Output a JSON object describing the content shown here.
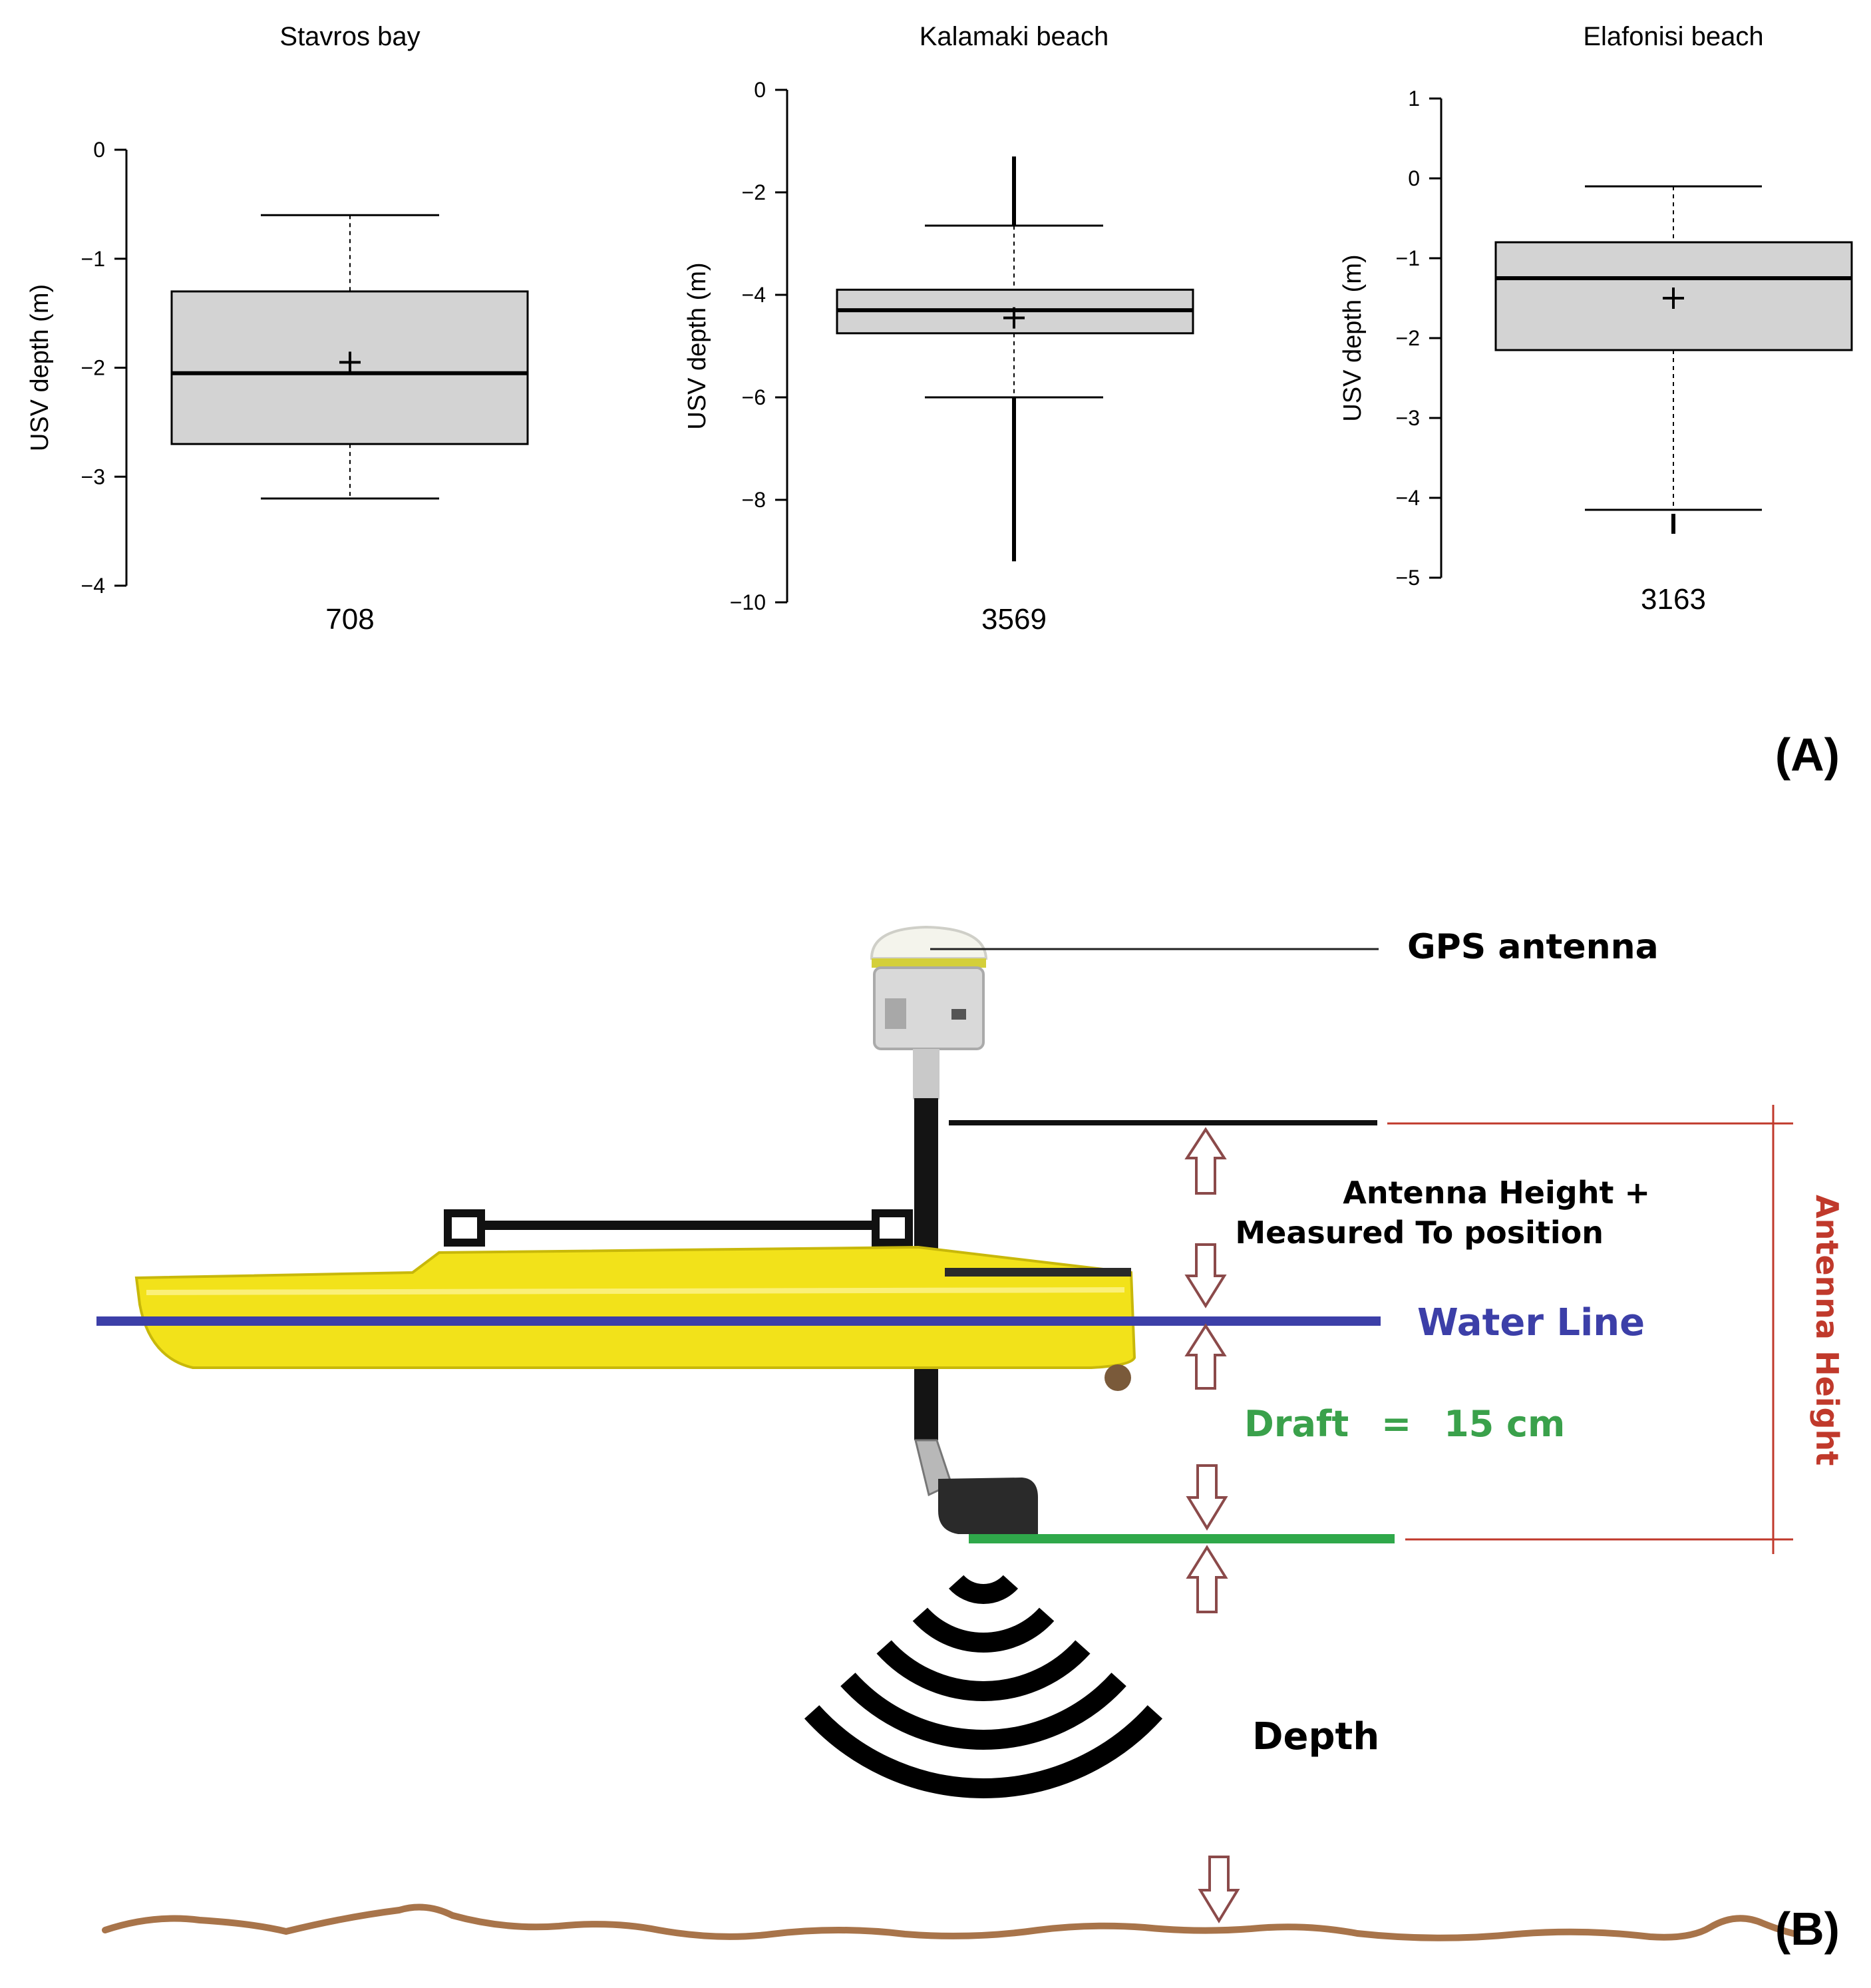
{
  "panel_a_label": "(A)",
  "panel_b_label": "(B)",
  "chart_data": [
    {
      "type": "box",
      "title": "Stavros bay",
      "ylabel": "USV depth (m)",
      "ylim": [
        -4,
        0
      ],
      "yticks": [
        0,
        -1,
        -2,
        -3,
        -4
      ],
      "ytick_labels": [
        "0",
        "−1",
        "−2",
        "−3",
        "−4"
      ],
      "count_label": "708",
      "box": {
        "whisker_high": -0.6,
        "q3": -1.3,
        "median": -2.05,
        "mean": -1.95,
        "q1": -2.7,
        "whisker_low": -3.2
      },
      "outlier_ranges": []
    },
    {
      "type": "box",
      "title": "Kalamaki beach",
      "ylabel": "USV depth (m)",
      "ylim": [
        -10,
        0
      ],
      "yticks": [
        0,
        -2,
        -4,
        -6,
        -8,
        -10
      ],
      "ytick_labels": [
        "0",
        "−2",
        "−4",
        "−6",
        "−8",
        "−10"
      ],
      "count_label": "3569",
      "box": {
        "whisker_high": -2.65,
        "q3": -3.9,
        "median": -4.3,
        "mean": -4.45,
        "q1": -4.75,
        "whisker_low": -6.0
      },
      "outlier_ranges": [
        [
          -1.3,
          -2.65
        ],
        [
          -6.0,
          -9.2
        ]
      ]
    },
    {
      "type": "box",
      "title": "Elafonisi beach",
      "ylabel": "USV depth (m)",
      "ylim": [
        -5,
        1
      ],
      "yticks": [
        1,
        0,
        -1,
        -2,
        -3,
        -4,
        -5
      ],
      "ytick_labels": [
        "1",
        "0",
        "−1",
        "−2",
        "−3",
        "−4",
        "−5"
      ],
      "count_label": "3163",
      "box": {
        "whisker_high": -0.1,
        "q3": -0.8,
        "median": -1.25,
        "mean": -1.5,
        "q1": -2.15,
        "whisker_low": -4.15
      },
      "outlier_ranges": [
        [
          -4.2,
          -4.45
        ]
      ]
    }
  ],
  "diagram": {
    "gps_label": "GPS antenna",
    "antenna_offset_label_line1": "Antenna Height +",
    "antenna_offset_label_line2": "Measured To position",
    "water_line_label": "Water Line",
    "draft_label": "Draft",
    "draft_equals": "=",
    "draft_value": "15 cm",
    "antenna_height_label": "Antenna Height",
    "depth_label": "Depth",
    "colors": {
      "boat_hull": "#f2e21a",
      "water_line": "#3c3fa8",
      "draft_line": "#2fa84a",
      "draft_text": "#3aa14b",
      "antenna_height": "#c0392b",
      "seabed": "#a8744a",
      "arrow": "#8b4a4a"
    }
  }
}
